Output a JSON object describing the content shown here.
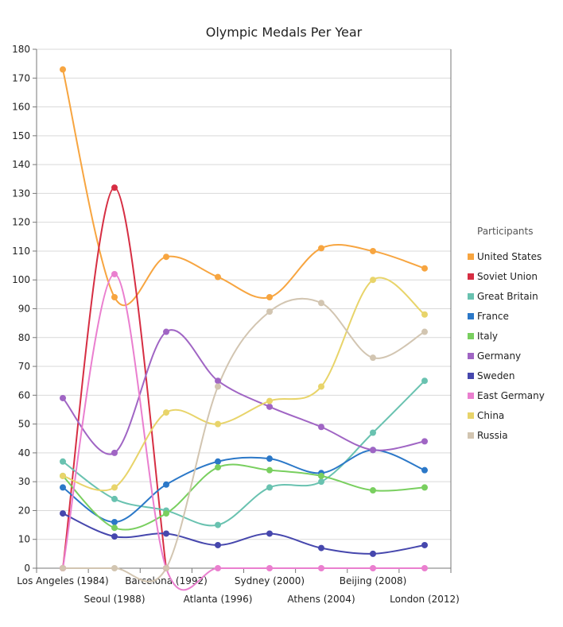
{
  "chart_data": {
    "type": "line",
    "title": "Olympic Medals Per Year",
    "xlabel": "",
    "ylabel": "",
    "categories": [
      "Los Angeles (1984)",
      "Seoul (1988)",
      "Barcelona (1992)",
      "Atlanta (1996)",
      "Sydney (2000)",
      "Athens (2004)",
      "Beijing (2008)",
      "London (2012)"
    ],
    "ylim": [
      0,
      180
    ],
    "yticks": [
      0,
      10,
      20,
      30,
      40,
      50,
      60,
      70,
      80,
      90,
      100,
      110,
      120,
      130,
      140,
      150,
      160,
      170,
      180
    ],
    "grid": true,
    "smooth": true,
    "legend": {
      "title": "Participants",
      "position": "right"
    },
    "series": [
      {
        "name": "United States",
        "color": "#f7a540",
        "values": [
          173,
          94,
          108,
          101,
          94,
          111,
          110,
          104
        ]
      },
      {
        "name": "Soviet Union",
        "color": "#d62e43",
        "values": [
          0,
          132,
          0,
          null,
          null,
          null,
          null,
          null
        ]
      },
      {
        "name": "Great Britain",
        "color": "#69c2b0",
        "values": [
          37,
          24,
          20,
          15,
          28,
          30,
          47,
          65
        ]
      },
      {
        "name": "France",
        "color": "#2b78c8",
        "values": [
          28,
          16,
          29,
          37,
          38,
          33,
          41,
          34
        ]
      },
      {
        "name": "Italy",
        "color": "#79cf5f",
        "values": [
          32,
          14,
          19,
          35,
          34,
          32,
          27,
          28
        ]
      },
      {
        "name": "Germany",
        "color": "#a065c4",
        "values": [
          59,
          40,
          82,
          65,
          56,
          49,
          41,
          44
        ]
      },
      {
        "name": "Sweden",
        "color": "#4647ad",
        "values": [
          19,
          11,
          12,
          8,
          12,
          7,
          5,
          8
        ]
      },
      {
        "name": "East Germany",
        "color": "#ea7fcf",
        "values": [
          0,
          102,
          0,
          0,
          0,
          0,
          0,
          0
        ]
      },
      {
        "name": "China",
        "color": "#e8d46a",
        "values": [
          32,
          28,
          54,
          50,
          58,
          63,
          100,
          88
        ]
      },
      {
        "name": "Russia",
        "color": "#d2c5b1",
        "values": [
          0,
          0,
          0,
          63,
          89,
          92,
          73,
          82
        ]
      }
    ]
  }
}
